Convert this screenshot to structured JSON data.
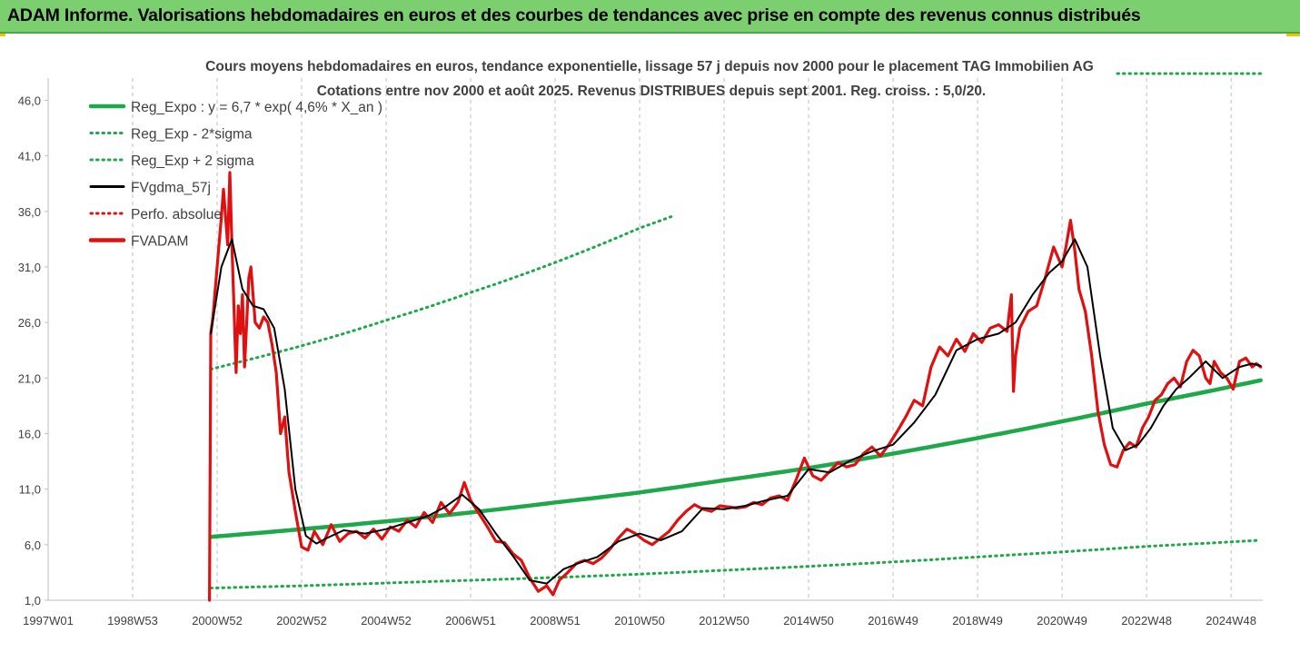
{
  "banner": {
    "title": "ADAM Informe. Valorisations hebdomadaires en euros et des courbes de tendances avec prise en compte des revenus connus distribués"
  },
  "chart_data": {
    "type": "line",
    "title_line1": "Cours moyens hebdomadaires en euros, tendance exponentielle, lissage 57 j depuis nov 2000 pour le placement TAG Immobilien AG",
    "title_line2": "Cotations entre nov 2000 et août 2025.  Revenus DISTRIBUES depuis sept 2001.  Reg. croiss. : 5,0/20.",
    "xlabel": "",
    "ylabel": "",
    "xlim": [
      1997.0,
      2025.75
    ],
    "ylim": [
      1.0,
      48.0
    ],
    "yticks": [
      "46,0",
      "41,0",
      "36,0",
      "31,0",
      "26,0",
      "21,0",
      "16,0",
      "11,0",
      "6,0",
      "1,0"
    ],
    "ytick_values": [
      46,
      41,
      36,
      31,
      26,
      21,
      16,
      11,
      6,
      1
    ],
    "xticks": [
      "1997W01",
      "1998W53",
      "2000W52",
      "2002W52",
      "2004W52",
      "2006W51",
      "2008W51",
      "2010W50",
      "2012W50",
      "2014W50",
      "2016W49",
      "2018W49",
      "2020W49",
      "2022W48",
      "2024W48"
    ],
    "xtick_values": [
      1997.0,
      1999.0,
      2001.0,
      2003.0,
      2005.0,
      2007.0,
      2009.0,
      2011.0,
      2013.0,
      2015.0,
      2017.0,
      2019.0,
      2021.0,
      2023.0,
      2025.0
    ],
    "grid": "vertical",
    "legend_position": "top-left",
    "legend": [
      {
        "label": "Reg_Expo : y = 6,7 * exp( 4,6% *  X_an )",
        "color": "#1fa84a",
        "style": "solid-thick"
      },
      {
        "label": "Reg_Exp - 2*sigma",
        "color": "#1fa84a",
        "style": "dotted"
      },
      {
        "label": "Reg_Exp + 2 sigma",
        "color": "#1fa84a",
        "style": "dotted"
      },
      {
        "label": "FVgdma_57j",
        "color": "#000000",
        "style": "solid"
      },
      {
        "label": "Perfo. absolue",
        "color": "#e01010",
        "style": "dotted"
      },
      {
        "label": "FVADAM",
        "color": "#e01010",
        "style": "solid-thick"
      }
    ],
    "series": [
      {
        "name": "Reg_Expo : y = 6,7 * exp( 4,6% *  X_an )",
        "color": "#1fa84a",
        "x": [
          2000.85,
          2003.0,
          2005.0,
          2007.0,
          2009.0,
          2011.0,
          2013.0,
          2015.0,
          2017.0,
          2019.0,
          2021.0,
          2023.0,
          2025.7
        ],
        "values": [
          6.7,
          7.4,
          8.1,
          8.9,
          9.8,
          10.7,
          11.8,
          12.9,
          14.2,
          15.6,
          17.1,
          18.7,
          20.8
        ]
      },
      {
        "name": "Reg_Exp - 2*sigma",
        "color": "#1fa84a",
        "x": [
          2000.85,
          2003.0,
          2005.0,
          2007.0,
          2009.0,
          2011.0,
          2013.0,
          2015.0,
          2017.0,
          2019.0,
          2021.0,
          2023.0,
          2025.7
        ],
        "values": [
          2.1,
          2.3,
          2.55,
          2.8,
          3.05,
          3.35,
          3.7,
          4.05,
          4.45,
          4.9,
          5.35,
          5.85,
          6.4
        ]
      },
      {
        "name": "Reg_Exp + 2 sigma",
        "color": "#1fa84a",
        "x": [
          2000.85,
          2002.0,
          2003.0,
          2004.0,
          2005.0,
          2006.0,
          2007.0,
          2008.0,
          2009.0,
          2010.0,
          2011.0,
          2011.8
        ],
        "values": [
          21.8,
          22.9,
          23.9,
          25.0,
          26.2,
          27.4,
          28.7,
          30.0,
          31.4,
          32.9,
          34.5,
          35.6
        ]
      },
      {
        "name": "FVgdma_57j",
        "color": "#000000",
        "x": [
          2000.85,
          2001.1,
          2001.35,
          2001.6,
          2001.85,
          2002.1,
          2002.35,
          2002.6,
          2002.85,
          2003.1,
          2003.35,
          2003.6,
          2004.0,
          2004.5,
          2005.0,
          2005.5,
          2006.0,
          2006.4,
          2006.8,
          2007.2,
          2007.6,
          2008.0,
          2008.4,
          2008.8,
          2009.2,
          2009.6,
          2010.0,
          2010.5,
          2011.0,
          2011.5,
          2012.0,
          2012.5,
          2013.0,
          2013.5,
          2014.0,
          2014.5,
          2015.0,
          2015.5,
          2016.0,
          2016.5,
          2017.0,
          2017.5,
          2018.0,
          2018.5,
          2019.0,
          2019.5,
          2019.9,
          2020.3,
          2020.7,
          2021.0,
          2021.3,
          2021.6,
          2021.9,
          2022.2,
          2022.5,
          2022.8,
          2023.1,
          2023.4,
          2023.7,
          2024.0,
          2024.4,
          2024.8,
          2025.2,
          2025.5,
          2025.7
        ],
        "values": [
          25.0,
          31.0,
          33.5,
          29.0,
          27.5,
          27.2,
          25.5,
          20.0,
          11.0,
          6.8,
          6.1,
          6.6,
          7.3,
          7.0,
          7.4,
          8.0,
          8.6,
          9.4,
          10.5,
          9.2,
          7.0,
          5.0,
          2.8,
          2.5,
          3.8,
          4.4,
          4.9,
          6.3,
          7.0,
          6.4,
          7.2,
          9.3,
          9.2,
          9.5,
          10.0,
          10.4,
          12.8,
          12.5,
          13.6,
          14.4,
          15.0,
          17.0,
          19.5,
          23.5,
          24.5,
          25.0,
          26.0,
          28.5,
          30.5,
          31.5,
          33.5,
          31.0,
          23.0,
          16.5,
          14.5,
          15.0,
          16.5,
          18.5,
          20.0,
          21.0,
          22.5,
          21.0,
          22.0,
          22.3,
          22.1
        ]
      },
      {
        "name": "FVADAM",
        "color": "#e01010",
        "x": [
          2000.82,
          2000.85,
          2000.9,
          2001.0,
          2001.1,
          2001.15,
          2001.25,
          2001.3,
          2001.35,
          2001.45,
          2001.5,
          2001.55,
          2001.6,
          2001.65,
          2001.75,
          2001.8,
          2001.9,
          2002.0,
          2002.1,
          2002.2,
          2002.3,
          2002.4,
          2002.5,
          2002.6,
          2002.7,
          2002.85,
          2003.0,
          2003.15,
          2003.3,
          2003.5,
          2003.7,
          2003.9,
          2004.1,
          2004.3,
          2004.5,
          2004.7,
          2004.9,
          2005.1,
          2005.3,
          2005.5,
          2005.7,
          2005.9,
          2006.1,
          2006.3,
          2006.5,
          2006.7,
          2006.85,
          2007.0,
          2007.2,
          2007.4,
          2007.6,
          2007.8,
          2008.0,
          2008.2,
          2008.4,
          2008.6,
          2008.8,
          2008.95,
          2009.1,
          2009.3,
          2009.5,
          2009.7,
          2009.9,
          2010.1,
          2010.3,
          2010.5,
          2010.7,
          2010.9,
          2011.1,
          2011.3,
          2011.5,
          2011.7,
          2011.9,
          2012.1,
          2012.3,
          2012.5,
          2012.7,
          2012.9,
          2013.1,
          2013.3,
          2013.5,
          2013.7,
          2013.9,
          2014.1,
          2014.3,
          2014.5,
          2014.7,
          2014.9,
          2015.1,
          2015.3,
          2015.5,
          2015.7,
          2015.9,
          2016.1,
          2016.3,
          2016.5,
          2016.7,
          2016.9,
          2017.1,
          2017.3,
          2017.5,
          2017.7,
          2017.9,
          2018.1,
          2018.3,
          2018.5,
          2018.7,
          2018.9,
          2019.1,
          2019.3,
          2019.5,
          2019.7,
          2019.8,
          2019.85,
          2019.9,
          2020.0,
          2020.2,
          2020.4,
          2020.6,
          2020.8,
          2021.0,
          2021.1,
          2021.2,
          2021.3,
          2021.4,
          2021.55,
          2021.7,
          2021.85,
          2022.0,
          2022.15,
          2022.3,
          2022.45,
          2022.6,
          2022.75,
          2022.9,
          2023.05,
          2023.2,
          2023.35,
          2023.5,
          2023.65,
          2023.8,
          2023.95,
          2024.1,
          2024.25,
          2024.4,
          2024.5,
          2024.6,
          2024.75,
          2024.9,
          2025.05,
          2025.2,
          2025.35,
          2025.5,
          2025.6,
          2025.7
        ],
        "values": [
          1.0,
          25.0,
          26.5,
          31.0,
          35.5,
          38.0,
          33.0,
          39.5,
          33.0,
          21.5,
          27.5,
          25.0,
          28.5,
          22.0,
          30.0,
          31.0,
          26.0,
          25.5,
          26.5,
          26.0,
          24.0,
          21.5,
          16.0,
          17.5,
          12.5,
          9.0,
          5.8,
          5.5,
          7.2,
          6.0,
          7.8,
          6.3,
          7.0,
          7.2,
          6.6,
          7.4,
          6.5,
          7.6,
          7.2,
          8.2,
          7.6,
          8.9,
          8.0,
          9.8,
          8.8,
          9.8,
          11.6,
          10.0,
          8.8,
          7.6,
          6.3,
          6.2,
          5.2,
          4.6,
          3.0,
          1.8,
          2.3,
          1.5,
          2.8,
          3.5,
          4.3,
          4.6,
          4.3,
          4.8,
          5.6,
          6.6,
          7.4,
          7.0,
          6.4,
          6.0,
          6.6,
          7.2,
          8.2,
          9.0,
          9.6,
          9.2,
          9.0,
          9.5,
          9.4,
          9.3,
          9.4,
          9.8,
          9.6,
          10.2,
          10.4,
          10.0,
          11.8,
          13.8,
          12.2,
          11.8,
          12.6,
          13.4,
          13.0,
          13.2,
          14.2,
          14.8,
          14.0,
          15.0,
          16.2,
          17.5,
          19.0,
          18.5,
          22.0,
          23.8,
          23.0,
          24.5,
          23.4,
          25.0,
          24.2,
          25.5,
          25.8,
          25.2,
          28.5,
          19.8,
          23.0,
          25.5,
          27.0,
          27.5,
          30.0,
          32.8,
          31.0,
          33.0,
          35.2,
          32.5,
          29.0,
          27.0,
          23.0,
          18.0,
          15.0,
          13.2,
          13.0,
          14.5,
          15.2,
          14.8,
          16.5,
          17.5,
          19.0,
          19.5,
          20.5,
          21.0,
          20.2,
          22.5,
          23.5,
          23.0,
          21.0,
          20.5,
          22.5,
          21.5,
          21.0,
          20.0,
          22.5,
          22.8,
          22.0,
          22.3,
          22.0
        ]
      }
    ],
    "perfo_absolue_dotted_top_right": true
  }
}
